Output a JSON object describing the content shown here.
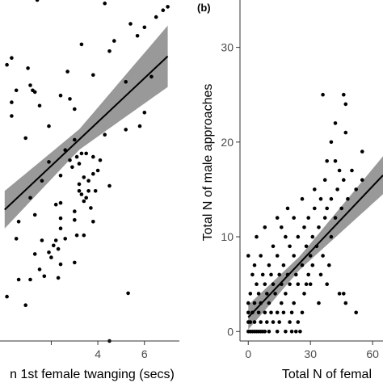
{
  "chart_data": [
    {
      "panel_label": "",
      "type": "scatter",
      "title": "",
      "xlabel": "n 1st female twanging (secs)",
      "ylabel": "",
      "xlim": [
        -0.2,
        7.5
      ],
      "ylim": [
        0,
        10
      ],
      "x_ticks": [
        2,
        4,
        6
      ],
      "x_tick_labels": [
        "",
        "4",
        "6"
      ],
      "grid": false,
      "legend": "none",
      "fit": {
        "x0": 0.0,
        "y0": 3.85,
        "x1": 7.0,
        "y1": 8.35,
        "band_at_x0": 0.55,
        "band_at_center": 0.3,
        "band_at_x1": 0.9,
        "x_center": 3.2
      },
      "points": [
        [
          1.4,
          10.0
        ],
        [
          4.3,
          9.9
        ],
        [
          7.0,
          9.8
        ],
        [
          6.8,
          9.7
        ],
        [
          6.5,
          9.5
        ],
        [
          5.4,
          9.3
        ],
        [
          6.0,
          9.2
        ],
        [
          5.7,
          8.95
        ],
        [
          4.7,
          8.8
        ],
        [
          3.3,
          8.7
        ],
        [
          4.5,
          8.5
        ],
        [
          0.3,
          8.3
        ],
        [
          0.1,
          8.1
        ],
        [
          1.0,
          8.0
        ],
        [
          2.7,
          7.9
        ],
        [
          3.8,
          7.8
        ],
        [
          6.3,
          7.75
        ],
        [
          5.2,
          7.6
        ],
        [
          1.1,
          7.5
        ],
        [
          0.5,
          7.35
        ],
        [
          1.2,
          7.35
        ],
        [
          1.3,
          7.3
        ],
        [
          2.4,
          7.2
        ],
        [
          2.8,
          7.1
        ],
        [
          0.3,
          7.0
        ],
        [
          1.5,
          6.9
        ],
        [
          3.0,
          6.8
        ],
        [
          6.0,
          6.7
        ],
        [
          0.3,
          6.6
        ],
        [
          5.8,
          6.3
        ],
        [
          1.9,
          6.3
        ],
        [
          5.2,
          6.2
        ],
        [
          4.3,
          6.05
        ],
        [
          0.9,
          5.95
        ],
        [
          3.0,
          5.9
        ],
        [
          2.6,
          5.6
        ],
        [
          2.8,
          5.3
        ],
        [
          3.1,
          5.4
        ],
        [
          2.9,
          5.1
        ],
        [
          3.3,
          5.5
        ],
        [
          3.5,
          5.5
        ],
        [
          3.8,
          5.4
        ],
        [
          4.1,
          5.3
        ],
        [
          1.9,
          5.25
        ],
        [
          3.2,
          5.2
        ],
        [
          4.0,
          5.0
        ],
        [
          3.8,
          4.9
        ],
        [
          2.4,
          4.85
        ],
        [
          3.4,
          4.8
        ],
        [
          3.6,
          4.7
        ],
        [
          1.6,
          4.7
        ],
        [
          3.2,
          4.6
        ],
        [
          4.5,
          4.55
        ],
        [
          3.2,
          4.4
        ],
        [
          3.6,
          4.4
        ],
        [
          3.9,
          4.4
        ],
        [
          3.3,
          4.3
        ],
        [
          3.5,
          4.2
        ],
        [
          1.1,
          4.2
        ],
        [
          2.2,
          4.0
        ],
        [
          2.4,
          4.05
        ],
        [
          3.4,
          4.1
        ],
        [
          3.0,
          3.8
        ],
        [
          3.7,
          3.9
        ],
        [
          1.3,
          3.7
        ],
        [
          2.4,
          3.6
        ],
        [
          3.0,
          3.55
        ],
        [
          0.6,
          3.5
        ],
        [
          3.8,
          3.5
        ],
        [
          2.4,
          3.3
        ],
        [
          3.1,
          3.1
        ],
        [
          2.6,
          3.0
        ],
        [
          0.5,
          3.0
        ],
        [
          3.4,
          3.1
        ],
        [
          2.2,
          2.95
        ],
        [
          1.6,
          2.95
        ],
        [
          2.1,
          2.8
        ],
        [
          2.3,
          2.7
        ],
        [
          1.9,
          2.6
        ],
        [
          1.3,
          2.55
        ],
        [
          2.0,
          2.45
        ],
        [
          3.0,
          2.3
        ],
        [
          2.4,
          2.25
        ],
        [
          1.5,
          2.1
        ],
        [
          1.7,
          1.9
        ],
        [
          1.1,
          1.8
        ],
        [
          2.3,
          1.85
        ],
        [
          0.6,
          1.8
        ],
        [
          5.3,
          1.4
        ],
        [
          0.9,
          1.05
        ],
        [
          0.1,
          1.3
        ],
        [
          4.5,
          0.0
        ]
      ]
    },
    {
      "panel_label": "(b)",
      "type": "scatter",
      "title": "",
      "xlabel": "Total N of femal",
      "ylabel": "Total N of male approaches",
      "xlim": [
        -4,
        65
      ],
      "ylim": [
        -1,
        35
      ],
      "x_ticks": [
        0,
        30,
        60
      ],
      "x_tick_labels": [
        "0",
        "30",
        "60"
      ],
      "y_ticks": [
        0,
        10,
        20,
        30
      ],
      "y_tick_labels": [
        "0",
        "10",
        "20",
        "30"
      ],
      "grid": false,
      "legend": "none",
      "fit": {
        "x0": 0,
        "y0": 1.5,
        "x1": 65,
        "y1": 16.5,
        "band_at_x0": 1.3,
        "band_at_center": 0.7,
        "band_at_x1": 2.0,
        "x_center": 25
      },
      "points": [
        [
          0,
          0
        ],
        [
          1,
          0
        ],
        [
          2,
          0
        ],
        [
          3,
          0
        ],
        [
          4,
          0
        ],
        [
          5,
          0
        ],
        [
          6,
          0
        ],
        [
          7,
          0
        ],
        [
          8,
          0
        ],
        [
          10,
          0
        ],
        [
          14,
          0
        ],
        [
          18,
          0
        ],
        [
          21,
          0
        ],
        [
          23,
          0
        ],
        [
          25,
          0
        ],
        [
          0,
          1
        ],
        [
          1,
          1
        ],
        [
          3,
          1
        ],
        [
          6,
          1
        ],
        [
          9,
          1
        ],
        [
          12,
          1
        ],
        [
          15,
          1
        ],
        [
          20,
          1
        ],
        [
          24,
          1
        ],
        [
          0,
          2
        ],
        [
          2,
          2
        ],
        [
          5,
          2
        ],
        [
          8,
          2
        ],
        [
          11,
          2
        ],
        [
          14,
          2
        ],
        [
          17,
          2
        ],
        [
          21,
          2
        ],
        [
          26,
          2
        ],
        [
          0,
          3
        ],
        [
          3,
          3
        ],
        [
          6,
          3
        ],
        [
          10,
          3
        ],
        [
          16,
          3
        ],
        [
          22,
          3
        ],
        [
          34,
          3
        ],
        [
          47,
          3
        ],
        [
          52,
          2
        ],
        [
          1,
          4
        ],
        [
          5,
          4
        ],
        [
          9,
          4
        ],
        [
          13,
          4
        ],
        [
          18,
          4
        ],
        [
          27,
          4
        ],
        [
          44,
          4
        ],
        [
          46,
          4
        ],
        [
          4,
          5
        ],
        [
          8,
          5
        ],
        [
          12,
          5
        ],
        [
          16,
          5
        ],
        [
          20,
          5
        ],
        [
          24,
          5
        ],
        [
          28,
          5
        ],
        [
          30,
          5
        ],
        [
          38,
          5
        ],
        [
          2,
          6
        ],
        [
          7,
          6
        ],
        [
          11,
          6
        ],
        [
          15,
          6
        ],
        [
          19,
          6
        ],
        [
          23,
          6
        ],
        [
          29,
          6
        ],
        [
          35,
          6
        ],
        [
          3,
          7
        ],
        [
          10,
          7
        ],
        [
          17,
          7
        ],
        [
          26,
          7
        ],
        [
          31,
          7
        ],
        [
          39,
          7
        ],
        [
          6,
          8
        ],
        [
          14,
          8
        ],
        [
          22,
          8
        ],
        [
          30,
          8
        ],
        [
          36,
          8
        ],
        [
          0,
          8
        ],
        [
          12,
          9
        ],
        [
          20,
          9
        ],
        [
          28,
          9
        ],
        [
          33,
          9
        ],
        [
          4,
          10
        ],
        [
          18,
          10
        ],
        [
          24,
          10
        ],
        [
          31,
          10
        ],
        [
          40,
          10
        ],
        [
          8,
          11
        ],
        [
          16,
          11
        ],
        [
          27,
          11
        ],
        [
          34,
          11
        ],
        [
          14,
          12
        ],
        [
          22,
          12
        ],
        [
          29,
          12
        ],
        [
          37,
          12
        ],
        [
          42,
          12
        ],
        [
          19,
          13
        ],
        [
          32,
          13
        ],
        [
          38,
          13
        ],
        [
          45,
          13
        ],
        [
          26,
          14
        ],
        [
          35,
          14
        ],
        [
          40,
          14
        ],
        [
          48,
          14
        ],
        [
          32,
          15
        ],
        [
          43,
          15
        ],
        [
          52,
          15
        ],
        [
          37,
          16
        ],
        [
          46,
          16
        ],
        [
          55,
          16
        ],
        [
          44,
          17
        ],
        [
          50,
          17
        ],
        [
          42,
          18
        ],
        [
          38,
          18
        ],
        [
          40,
          20
        ],
        [
          55,
          19
        ],
        [
          47,
          21
        ],
        [
          42,
          22
        ],
        [
          36,
          25
        ],
        [
          46,
          25
        ],
        [
          47,
          24
        ]
      ]
    }
  ]
}
